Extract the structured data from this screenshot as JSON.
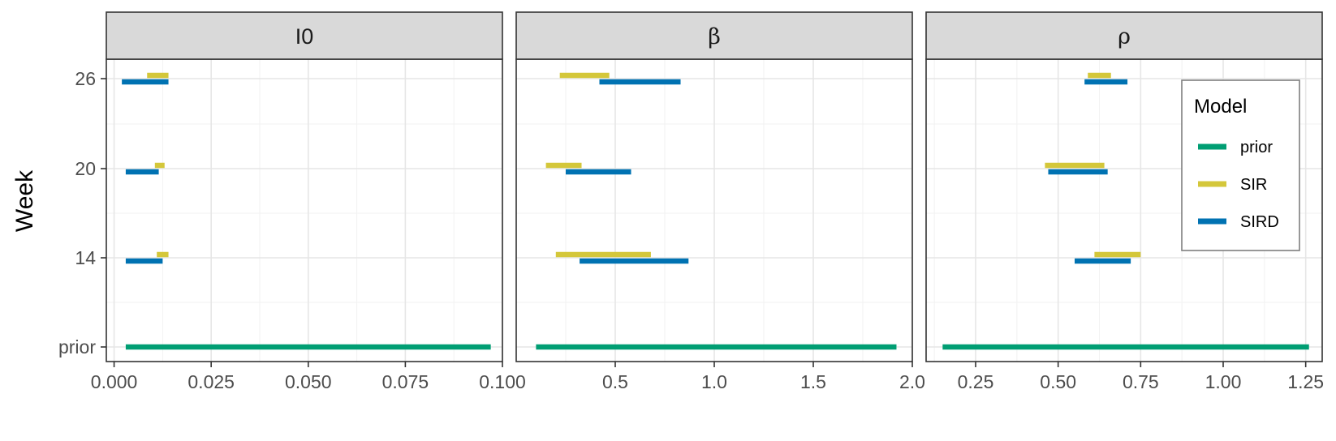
{
  "chart_data": {
    "type": "interval",
    "ylabel": "Week",
    "y_categories": [
      "prior",
      "14",
      "20",
      "26"
    ],
    "colors": {
      "prior": "#009E73",
      "SIR": "#D4C73A",
      "SIRD": "#0072B2"
    },
    "legend": {
      "title": "Model",
      "position": "top-right",
      "entries": [
        "prior",
        "SIR",
        "SIRD"
      ]
    },
    "facets": [
      {
        "strip": "I0",
        "xlim": [
          -0.002,
          0.1
        ],
        "xticks": [
          0.0,
          0.025,
          0.05,
          0.075,
          0.1
        ],
        "xtick_labels": [
          "0.000",
          "0.025",
          "0.050",
          "0.075",
          "0.100"
        ],
        "intervals": [
          {
            "week": "prior",
            "model": "prior",
            "lo": 0.003,
            "hi": 0.097
          },
          {
            "week": "14",
            "model": "SIR",
            "lo": 0.011,
            "hi": 0.014
          },
          {
            "week": "14",
            "model": "SIRD",
            "lo": 0.003,
            "hi": 0.0125
          },
          {
            "week": "20",
            "model": "SIR",
            "lo": 0.0105,
            "hi": 0.013
          },
          {
            "week": "20",
            "model": "SIRD",
            "lo": 0.003,
            "hi": 0.0115
          },
          {
            "week": "26",
            "model": "SIR",
            "lo": 0.0085,
            "hi": 0.014
          },
          {
            "week": "26",
            "model": "SIRD",
            "lo": 0.002,
            "hi": 0.014
          }
        ]
      },
      {
        "strip": "β",
        "xlim": [
          0.0,
          2.0
        ],
        "xticks": [
          0.5,
          1.0,
          1.5,
          2.0
        ],
        "xtick_labels": [
          "0.5",
          "1.0",
          "1.5",
          "2.0"
        ],
        "intervals": [
          {
            "week": "prior",
            "model": "prior",
            "lo": 0.1,
            "hi": 1.92
          },
          {
            "week": "14",
            "model": "SIR",
            "lo": 0.2,
            "hi": 0.68
          },
          {
            "week": "14",
            "model": "SIRD",
            "lo": 0.32,
            "hi": 0.87
          },
          {
            "week": "20",
            "model": "SIR",
            "lo": 0.15,
            "hi": 0.33
          },
          {
            "week": "20",
            "model": "SIRD",
            "lo": 0.25,
            "hi": 0.58
          },
          {
            "week": "26",
            "model": "SIR",
            "lo": 0.22,
            "hi": 0.47
          },
          {
            "week": "26",
            "model": "SIRD",
            "lo": 0.42,
            "hi": 0.83
          }
        ]
      },
      {
        "strip": "ρ",
        "xlim": [
          0.1,
          1.3
        ],
        "xticks": [
          0.25,
          0.5,
          0.75,
          1.0,
          1.25
        ],
        "xtick_labels": [
          "0.25",
          "0.50",
          "0.75",
          "1.00",
          "1.25"
        ],
        "intervals": [
          {
            "week": "prior",
            "model": "prior",
            "lo": 0.15,
            "hi": 1.26
          },
          {
            "week": "14",
            "model": "SIR",
            "lo": 0.61,
            "hi": 0.75
          },
          {
            "week": "14",
            "model": "SIRD",
            "lo": 0.55,
            "hi": 0.72
          },
          {
            "week": "20",
            "model": "SIR",
            "lo": 0.46,
            "hi": 0.64
          },
          {
            "week": "20",
            "model": "SIRD",
            "lo": 0.47,
            "hi": 0.65
          },
          {
            "week": "26",
            "model": "SIR",
            "lo": 0.59,
            "hi": 0.66
          },
          {
            "week": "26",
            "model": "SIRD",
            "lo": 0.58,
            "hi": 0.71
          }
        ]
      }
    ]
  }
}
